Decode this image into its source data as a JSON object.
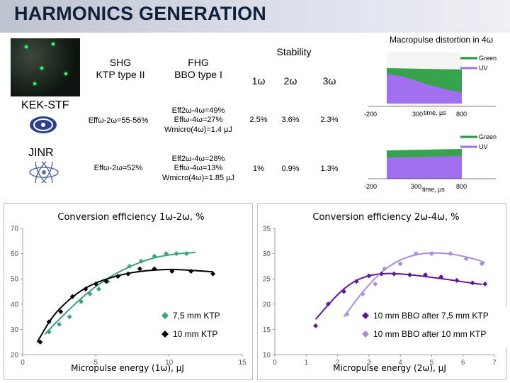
{
  "slide": {
    "title": "HARMONICS GENERATION"
  },
  "crystals": {
    "shg_label": "SHG\nKTP type II",
    "fhg_label": "FHG\nBBO type I"
  },
  "labs": [
    {
      "name": "KEK-STF",
      "shg_eff": "Effω-2ω=55-56%",
      "fhg_eff_1": "Eff2ω-4ω=49%",
      "fhg_eff_2": "Effω-4ω=27%",
      "fhg_eff_3": "Wmicro(4ω)=1.4 µJ",
      "stab_1w": "2.5%",
      "stab_2w": "3.6%",
      "stab_3w": "2.3%"
    },
    {
      "name": "JINR",
      "shg_eff": "Effω-2ω=52%",
      "fhg_eff_1": "Eff2ω-4ω=28%",
      "fhg_eff_2": "Effω-4ω=13%",
      "fhg_eff_3": "Wmicro(4ω)=1.85 µJ",
      "stab_1w": "1%",
      "stab_2w": "0.9%",
      "stab_3w": "1.3%"
    }
  ],
  "stability": {
    "title": "Stability",
    "columns": [
      "1ω",
      "2ω",
      "3ω"
    ]
  },
  "macropulse": {
    "title": "Macropulse distortion in 4ω",
    "legend_green": "Green",
    "legend_uv": "UV",
    "x_ticks": [
      "-200",
      "300",
      "time, µs",
      "800"
    ],
    "colors": {
      "green": "#1f9a3a",
      "uv": "#a070f0"
    }
  },
  "chart_data": [
    {
      "type": "scatter",
      "title": "Conversion efficiency 1ω-2ω, %",
      "xlabel": "Micropulse energy (1ω), µJ",
      "ylabel": "",
      "xlim": [
        0,
        15
      ],
      "ylim": [
        20,
        70
      ],
      "x_ticks": [
        0,
        5,
        10,
        15
      ],
      "y_ticks": [
        20,
        30,
        40,
        50,
        60,
        70
      ],
      "grid": false,
      "series": [
        {
          "name": "7,5 mm KTP",
          "color": "#3aa37e",
          "marker": "diamond",
          "x": [
            1.8,
            2.5,
            3.2,
            4.0,
            4.6,
            5.2,
            5.8,
            6.5,
            7.3,
            8.1,
            9.0,
            9.8,
            10.5,
            11.2
          ],
          "y": [
            29,
            32,
            35,
            41,
            44,
            46,
            49,
            51,
            55,
            57,
            59,
            60,
            60,
            60
          ]
        },
        {
          "name": "10 mm KTP",
          "color": "#000000",
          "marker": "diamond",
          "x": [
            1.2,
            1.8,
            2.6,
            3.4,
            4.3,
            5.0,
            5.7,
            6.5,
            7.2,
            8.0,
            9.0,
            10.2,
            11.5,
            13.0
          ],
          "y": [
            25,
            33,
            37,
            43,
            46,
            48,
            49,
            51,
            52,
            54,
            54,
            53,
            53,
            52
          ]
        }
      ],
      "fit_lines": [
        {
          "color": "#3aa37e",
          "x": [
            1.5,
            3,
            4.5,
            6,
            7.5,
            9,
            10.5,
            11.8
          ],
          "y": [
            28,
            37,
            45,
            51,
            55.5,
            58.5,
            60,
            60.5
          ]
        },
        {
          "color": "#000000",
          "x": [
            1.0,
            2,
            3,
            4,
            5,
            6,
            7,
            8,
            9,
            10,
            11,
            12,
            13
          ],
          "y": [
            25,
            35,
            41,
            45.5,
            48.5,
            50.5,
            52,
            53,
            53.5,
            53.8,
            53.6,
            53.2,
            52.8
          ]
        }
      ]
    },
    {
      "type": "scatter",
      "title": "Conversion efficiency 2ω-4ω, %",
      "xlabel": "Micropulse energy (2ω), µJ",
      "ylabel": "",
      "xlim": [
        0,
        7
      ],
      "ylim": [
        10,
        35
      ],
      "x_ticks": [
        0,
        1,
        2,
        3,
        4,
        5,
        6,
        7
      ],
      "y_ticks": [
        10,
        15,
        20,
        25,
        30,
        35
      ],
      "grid": false,
      "series": [
        {
          "name": "10 mm BBO after 7,5 mm KTP",
          "color": "#5a1a9a",
          "marker": "diamond",
          "x": [
            1.3,
            1.7,
            2.2,
            2.6,
            3.0,
            3.4,
            3.8,
            4.3,
            4.8,
            5.3,
            5.8,
            6.3,
            6.7
          ],
          "y": [
            15.7,
            20.0,
            22.5,
            24.5,
            25.6,
            26.0,
            26.0,
            25.8,
            25.8,
            25.4,
            24.7,
            24.2,
            24.0
          ]
        },
        {
          "name": "10 mm BBO after 10 mm KTP",
          "color": "#a98ee0",
          "marker": "diamond",
          "x": [
            2.3,
            2.8,
            3.2,
            3.5,
            4.0,
            4.5,
            5.0,
            5.6,
            6.1,
            6.6
          ],
          "y": [
            18.0,
            22.0,
            24.0,
            27.0,
            28.0,
            30.0,
            30.0,
            30.0,
            29.0,
            28.0
          ]
        }
      ],
      "fit_lines": [
        {
          "color": "#5a1a9a",
          "x": [
            1.3,
            2,
            2.5,
            3,
            3.5,
            4,
            4.5,
            5,
            5.5,
            6,
            6.6
          ],
          "y": [
            17,
            22,
            24.5,
            25.7,
            26.1,
            26.0,
            25.7,
            25.3,
            24.9,
            24.4,
            23.9
          ]
        },
        {
          "color": "#a98ee0",
          "x": [
            2.2,
            2.8,
            3.4,
            4.0,
            4.6,
            5.2,
            5.8,
            6.4,
            6.7
          ],
          "y": [
            17.5,
            22.5,
            26.5,
            28.9,
            30.0,
            30.2,
            29.8,
            28.9,
            28.2
          ]
        }
      ]
    }
  ]
}
